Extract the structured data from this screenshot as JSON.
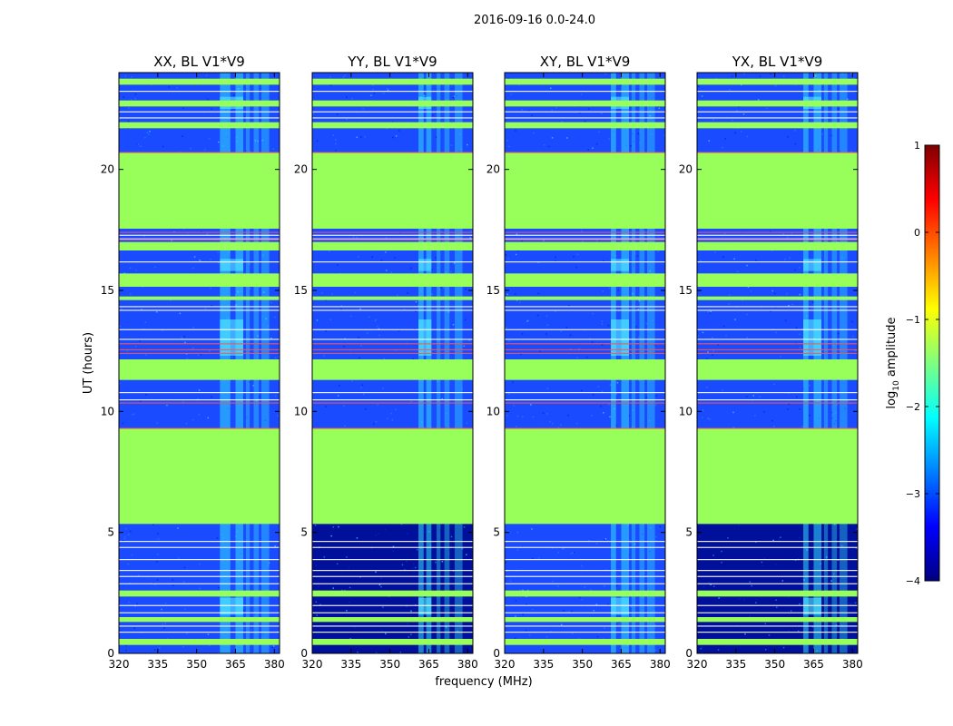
{
  "suptitle": "2016-09-16 0.0-24.0",
  "shared": {
    "xlabel": "frequency (MHz)",
    "ylabel": "UT (hours)",
    "x_range": [
      320,
      382
    ],
    "y_range": [
      0,
      24
    ],
    "x_ticks": [
      320,
      335,
      350,
      365,
      380
    ],
    "y_ticks": [
      0,
      5,
      10,
      15,
      20
    ]
  },
  "colorbar": {
    "label_prefix": "log",
    "label_sub": "10",
    "label_suffix": " amplitude",
    "range": [
      -4,
      1
    ],
    "ticks": [
      1,
      0,
      -1,
      -2,
      -3,
      -4
    ],
    "tick_labels": [
      "1",
      "0",
      "−1",
      "−2",
      "−3",
      "−4"
    ],
    "colormap": "jet",
    "colormap_stops": [
      "#00007f",
      "#0000ff",
      "#007fff",
      "#00ffff",
      "#7fff7f",
      "#ffff00",
      "#ff7f00",
      "#ff0000",
      "#7f0000"
    ]
  },
  "colors": {
    "background_noise": "#1a4bff",
    "dark_noise": "#00109a",
    "flagged": "#98ff5a",
    "edge_line": "#ff5555",
    "rfi_cyan": "#33ddff",
    "white_line": "#ffffff"
  },
  "chart_data": [
    {
      "type": "heatmap",
      "title": "XX, BL V1*V9",
      "polarization": "XX",
      "baseline": "V1*V9",
      "xlabel": "frequency (MHz)",
      "ylabel": "UT (hours)",
      "x_range": [
        320,
        382
      ],
      "y_range": [
        0,
        24
      ],
      "quiet_level_log10": -2.9,
      "flagged_level_log10": -1.05,
      "flagged_time_ranges_hours": [
        [
          0.35,
          0.6
        ],
        [
          1.3,
          1.5
        ],
        [
          2.35,
          2.6
        ],
        [
          5.35,
          9.3
        ],
        [
          11.3,
          12.15
        ],
        [
          14.6,
          14.75
        ],
        [
          15.15,
          15.7
        ],
        [
          16.65,
          17.0
        ],
        [
          17.55,
          20.7
        ],
        [
          21.7,
          21.95
        ],
        [
          22.6,
          22.85
        ],
        [
          23.5,
          23.75
        ]
      ],
      "rfi_bands_mhz": [
        [
          359,
          363
        ],
        [
          365,
          368
        ],
        [
          369,
          370.5
        ],
        [
          372,
          374
        ],
        [
          375,
          378
        ]
      ],
      "notes": "dense RFI in 359-378 MHz band, strongest 12.3-13.8 h"
    },
    {
      "type": "heatmap",
      "title": "YY, BL V1*V9",
      "polarization": "YY",
      "baseline": "V1*V9",
      "xlabel": "frequency (MHz)",
      "ylabel": "UT (hours)",
      "x_range": [
        320,
        382
      ],
      "y_range": [
        0,
        24
      ],
      "quiet_level_log10": -2.9,
      "early_quiet_level_log10": -3.5,
      "flagged_level_log10": -1.05,
      "flagged_time_ranges_hours": [
        [
          0.35,
          0.6
        ],
        [
          1.3,
          1.5
        ],
        [
          2.35,
          2.6
        ],
        [
          5.35,
          9.3
        ],
        [
          11.3,
          12.15
        ],
        [
          14.6,
          14.75
        ],
        [
          15.15,
          15.7
        ],
        [
          16.65,
          17.0
        ],
        [
          17.55,
          20.7
        ],
        [
          21.7,
          21.95
        ],
        [
          22.6,
          22.85
        ],
        [
          23.5,
          23.75
        ]
      ],
      "rfi_bands_mhz": [
        [
          361,
          363
        ],
        [
          364,
          366
        ],
        [
          368,
          369.5
        ],
        [
          371,
          373
        ],
        [
          375,
          378
        ]
      ],
      "notes": "darker noise floor from 0 to 5.3 h"
    },
    {
      "type": "heatmap",
      "title": "XY, BL V1*V9",
      "polarization": "XY",
      "baseline": "V1*V9",
      "xlabel": "frequency (MHz)",
      "ylabel": "UT (hours)",
      "x_range": [
        320,
        382
      ],
      "y_range": [
        0,
        24
      ],
      "quiet_level_log10": -2.9,
      "flagged_level_log10": -1.05,
      "flagged_time_ranges_hours": [
        [
          0.35,
          0.6
        ],
        [
          1.3,
          1.5
        ],
        [
          2.35,
          2.6
        ],
        [
          5.35,
          9.3
        ],
        [
          11.3,
          12.15
        ],
        [
          14.6,
          14.75
        ],
        [
          15.15,
          15.7
        ],
        [
          16.65,
          17.0
        ],
        [
          17.55,
          20.7
        ],
        [
          21.7,
          21.95
        ],
        [
          22.6,
          22.85
        ],
        [
          23.5,
          23.75
        ]
      ],
      "rfi_bands_mhz": [
        [
          361,
          363
        ],
        [
          365,
          368
        ],
        [
          369,
          370.5
        ],
        [
          372,
          374
        ],
        [
          375,
          378
        ]
      ]
    },
    {
      "type": "heatmap",
      "title": "YX, BL V1*V9",
      "polarization": "YX",
      "baseline": "V1*V9",
      "xlabel": "frequency (MHz)",
      "ylabel": "UT (hours)",
      "x_range": [
        320,
        382
      ],
      "y_range": [
        0,
        24
      ],
      "quiet_level_log10": -2.9,
      "early_quiet_level_log10": -3.5,
      "flagged_level_log10": -1.05,
      "flagged_time_ranges_hours": [
        [
          0.35,
          0.6
        ],
        [
          1.3,
          1.5
        ],
        [
          2.35,
          2.6
        ],
        [
          5.35,
          9.3
        ],
        [
          11.3,
          12.15
        ],
        [
          14.6,
          14.75
        ],
        [
          15.15,
          15.7
        ],
        [
          16.65,
          17.0
        ],
        [
          17.55,
          20.7
        ],
        [
          21.7,
          21.95
        ],
        [
          22.6,
          22.85
        ],
        [
          23.5,
          23.75
        ]
      ],
      "rfi_bands_mhz": [
        [
          361,
          363
        ],
        [
          365,
          368
        ],
        [
          369,
          370.5
        ],
        [
          372,
          374
        ],
        [
          375,
          378
        ]
      ],
      "notes": "darker noise floor from 0 to 5.3 h"
    }
  ]
}
